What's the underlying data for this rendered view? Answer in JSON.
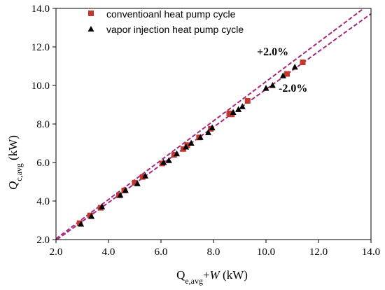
{
  "chart_data": {
    "type": "scatter",
    "title": "",
    "xlabel": "Qe,avg+W (kW)",
    "ylabel": "Qc,avg (kW)",
    "xlabel_parts": {
      "main": "Q",
      "sub": "e,avg",
      "plus": "+",
      "w": "W",
      "unit": " (kW)"
    },
    "ylabel_parts": {
      "main": "Q",
      "sub": "c,avg",
      "unit": " (kW)"
    },
    "xlim": [
      2.0,
      14.0
    ],
    "ylim": [
      2.0,
      14.0
    ],
    "xticks": [
      "2.0",
      "4.0",
      "6.0",
      "8.0",
      "10.0",
      "12.0",
      "14.0"
    ],
    "yticks": [
      "2.0",
      "4.0",
      "6.0",
      "8.0",
      "10.0",
      "12.0",
      "14.0"
    ],
    "grid": false,
    "legend_position": "top-left",
    "series": [
      {
        "name": "conventioanl heat pump cycle",
        "marker": "square",
        "color": "#C0392B",
        "points": [
          [
            2.9,
            2.85
          ],
          [
            3.3,
            3.25
          ],
          [
            3.7,
            3.65
          ],
          [
            4.4,
            4.3
          ],
          [
            4.6,
            4.55
          ],
          [
            5.0,
            4.95
          ],
          [
            5.3,
            5.25
          ],
          [
            6.05,
            5.95
          ],
          [
            6.5,
            6.4
          ],
          [
            6.85,
            6.7
          ],
          [
            7.0,
            6.9
          ],
          [
            7.45,
            7.3
          ],
          [
            7.9,
            7.75
          ],
          [
            8.6,
            8.55
          ],
          [
            8.7,
            8.5
          ],
          [
            9.3,
            9.2
          ],
          [
            10.8,
            10.6
          ],
          [
            11.4,
            11.2
          ]
        ]
      },
      {
        "name": "vapor injection heat pump cycle",
        "marker": "triangle",
        "color": "#000000",
        "points": [
          [
            2.95,
            2.8
          ],
          [
            3.35,
            3.2
          ],
          [
            3.75,
            3.7
          ],
          [
            4.45,
            4.3
          ],
          [
            4.65,
            4.55
          ],
          [
            5.1,
            4.9
          ],
          [
            5.4,
            5.3
          ],
          [
            6.1,
            6.0
          ],
          [
            6.3,
            6.1
          ],
          [
            6.6,
            6.45
          ],
          [
            6.95,
            6.8
          ],
          [
            7.15,
            7.0
          ],
          [
            7.5,
            7.3
          ],
          [
            7.8,
            7.55
          ],
          [
            7.95,
            7.8
          ],
          [
            8.75,
            8.6
          ],
          [
            8.95,
            8.75
          ],
          [
            9.1,
            8.9
          ],
          [
            10.0,
            9.85
          ],
          [
            10.25,
            10.0
          ],
          [
            10.65,
            10.5
          ],
          [
            11.1,
            10.95
          ]
        ]
      }
    ],
    "reference_lines": [
      {
        "label": "+2.0%",
        "factor": 1.02,
        "color": "#A6287E"
      },
      {
        "label": "-2.0%",
        "factor": 0.98,
        "color": "#A6287E"
      }
    ]
  }
}
